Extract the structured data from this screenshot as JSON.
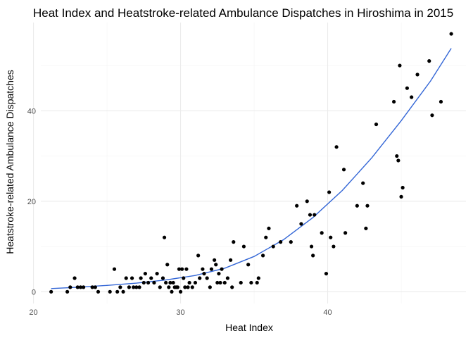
{
  "chart_data": {
    "type": "scatter",
    "title": "Heat Index and Heatstroke-related Ambulance Dispatches in Hiroshima in 2015",
    "xlabel": "Heat Index",
    "ylabel": "Heatstroke-related Ambulance Dispatches",
    "xlim": [
      20.5,
      49.4
    ],
    "ylim": [
      -2.6,
      59.5
    ],
    "x_ticks": [
      20,
      30,
      40
    ],
    "y_ticks": [
      0,
      20,
      40
    ],
    "x_minor": [
      25,
      35,
      45
    ],
    "y_minor": [
      10,
      30,
      50
    ],
    "grid": true,
    "point_color": "#000000",
    "trend_color": "#3366d6",
    "points": [
      [
        21.2,
        0
      ],
      [
        22.3,
        0
      ],
      [
        22.5,
        1
      ],
      [
        22.8,
        3
      ],
      [
        23.0,
        1
      ],
      [
        23.2,
        1
      ],
      [
        23.4,
        1
      ],
      [
        24.0,
        1
      ],
      [
        24.2,
        1
      ],
      [
        24.4,
        0
      ],
      [
        25.2,
        0
      ],
      [
        25.5,
        5
      ],
      [
        25.7,
        0
      ],
      [
        25.9,
        1
      ],
      [
        26.1,
        0
      ],
      [
        26.3,
        3
      ],
      [
        26.5,
        1
      ],
      [
        26.7,
        3
      ],
      [
        26.8,
        1
      ],
      [
        27.0,
        1
      ],
      [
        27.2,
        1
      ],
      [
        27.3,
        3
      ],
      [
        27.5,
        2
      ],
      [
        27.6,
        4
      ],
      [
        27.8,
        2
      ],
      [
        28.0,
        3
      ],
      [
        28.2,
        2
      ],
      [
        28.4,
        4
      ],
      [
        28.6,
        1
      ],
      [
        28.8,
        3
      ],
      [
        28.9,
        12
      ],
      [
        29.0,
        2
      ],
      [
        29.1,
        6
      ],
      [
        29.2,
        1
      ],
      [
        29.3,
        2
      ],
      [
        29.4,
        0
      ],
      [
        29.5,
        2
      ],
      [
        29.6,
        1
      ],
      [
        29.7,
        1
      ],
      [
        29.8,
        1
      ],
      [
        29.9,
        5
      ],
      [
        30.0,
        0
      ],
      [
        30.1,
        5
      ],
      [
        30.2,
        3
      ],
      [
        30.3,
        1
      ],
      [
        30.4,
        5
      ],
      [
        30.5,
        1
      ],
      [
        30.6,
        2
      ],
      [
        30.8,
        1
      ],
      [
        31.0,
        2
      ],
      [
        31.2,
        8
      ],
      [
        31.3,
        3
      ],
      [
        31.5,
        5
      ],
      [
        31.6,
        4
      ],
      [
        31.8,
        3
      ],
      [
        32.0,
        1
      ],
      [
        32.1,
        5
      ],
      [
        32.3,
        7
      ],
      [
        32.4,
        6
      ],
      [
        32.5,
        2
      ],
      [
        32.6,
        4
      ],
      [
        32.7,
        2
      ],
      [
        32.8,
        5
      ],
      [
        33.0,
        2
      ],
      [
        33.2,
        3
      ],
      [
        33.4,
        7
      ],
      [
        33.5,
        1
      ],
      [
        33.6,
        11
      ],
      [
        34.1,
        2
      ],
      [
        34.3,
        10
      ],
      [
        34.6,
        6
      ],
      [
        34.8,
        2
      ],
      [
        35.2,
        2
      ],
      [
        35.3,
        3
      ],
      [
        35.6,
        8
      ],
      [
        35.8,
        12
      ],
      [
        36.0,
        14
      ],
      [
        36.3,
        10
      ],
      [
        36.8,
        11
      ],
      [
        37.5,
        11
      ],
      [
        37.9,
        19
      ],
      [
        38.2,
        15
      ],
      [
        38.6,
        20
      ],
      [
        38.8,
        17
      ],
      [
        38.9,
        10
      ],
      [
        39.0,
        8
      ],
      [
        39.1,
        17
      ],
      [
        39.6,
        13
      ],
      [
        39.9,
        4
      ],
      [
        40.1,
        22
      ],
      [
        40.2,
        12
      ],
      [
        40.4,
        10
      ],
      [
        40.6,
        32
      ],
      [
        41.1,
        27
      ],
      [
        41.2,
        13
      ],
      [
        42.0,
        19
      ],
      [
        42.4,
        24
      ],
      [
        42.6,
        14
      ],
      [
        42.7,
        19
      ],
      [
        43.3,
        37
      ],
      [
        44.5,
        42
      ],
      [
        44.7,
        30
      ],
      [
        44.8,
        29
      ],
      [
        44.9,
        50
      ],
      [
        45.0,
        21
      ],
      [
        45.1,
        23
      ],
      [
        45.4,
        45
      ],
      [
        45.7,
        43
      ],
      [
        46.1,
        48
      ],
      [
        46.9,
        51
      ],
      [
        47.1,
        39
      ],
      [
        47.7,
        42
      ],
      [
        48.4,
        57
      ]
    ],
    "trend": [
      [
        21.2,
        0.7
      ],
      [
        23.0,
        1.0
      ],
      [
        25.0,
        1.4
      ],
      [
        27.0,
        1.9
      ],
      [
        29.0,
        2.6
      ],
      [
        31.0,
        3.6
      ],
      [
        33.0,
        5.2
      ],
      [
        35.0,
        7.8
      ],
      [
        37.0,
        11.5
      ],
      [
        39.0,
        16.4
      ],
      [
        41.0,
        22.4
      ],
      [
        43.0,
        29.6
      ],
      [
        45.0,
        37.8
      ],
      [
        47.0,
        46.6
      ],
      [
        48.4,
        53.8
      ]
    ]
  }
}
